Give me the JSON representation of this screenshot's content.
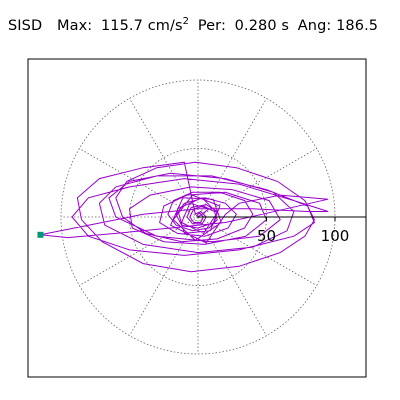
{
  "header": {
    "station": "SISD",
    "max_label": "Max:",
    "max_value": "115.7",
    "max_unit": "cm/s",
    "max_unit_exp": "2",
    "per_label": "Per:",
    "per_value": "0.280",
    "per_unit": "s",
    "ang_label": "Ang:",
    "ang_value": "186.5"
  },
  "chart_data": {
    "type": "polar-trajectory",
    "title": "SISD",
    "max_amplitude": 115.7,
    "max_unit": "cm/s2",
    "period_s": 0.28,
    "angle_deg": 186.5,
    "radial_ticks": [
      50,
      100
    ],
    "radial_tick_labels": [
      "50",
      "100"
    ],
    "rmax": 100,
    "grid": {
      "circles": [
        50,
        100
      ],
      "spokes_deg": [
        0,
        30,
        60,
        90,
        120,
        150,
        180,
        210,
        240,
        270,
        300,
        330
      ]
    },
    "colors": {
      "trajectory": "#9900cc",
      "grid": "#666666",
      "marker": "#009977",
      "axis": "#000000"
    },
    "marker": {
      "x": -115.0,
      "y": -13.0
    },
    "trajectory": [
      [
        0,
        0
      ],
      [
        8,
        6
      ],
      [
        -6,
        10
      ],
      [
        -12,
        -4
      ],
      [
        4,
        -12
      ],
      [
        14,
        3
      ],
      [
        3,
        14
      ],
      [
        -15,
        6
      ],
      [
        -10,
        -12
      ],
      [
        9,
        -10
      ],
      [
        16,
        8
      ],
      [
        -4,
        16
      ],
      [
        -18,
        -2
      ],
      [
        -2,
        -17
      ],
      [
        17,
        -4
      ],
      [
        11,
        13
      ],
      [
        -11,
        14
      ],
      [
        -20,
        -6
      ],
      [
        6,
        -19
      ],
      [
        20,
        2
      ],
      [
        30,
        10
      ],
      [
        60,
        16
      ],
      [
        95,
        13
      ],
      [
        60,
        5
      ],
      [
        20,
        -4
      ],
      [
        -20,
        -8
      ],
      [
        -60,
        -12
      ],
      [
        -95,
        -15
      ],
      [
        -115,
        -13
      ],
      [
        -80,
        -6
      ],
      [
        -40,
        2
      ],
      [
        0,
        6
      ],
      [
        40,
        6
      ],
      [
        80,
        4
      ],
      [
        95,
        4
      ],
      [
        70,
        12
      ],
      [
        30,
        24
      ],
      [
        -10,
        28
      ],
      [
        -50,
        22
      ],
      [
        -80,
        14
      ],
      [
        -92,
        0
      ],
      [
        -80,
        -14
      ],
      [
        -50,
        -24
      ],
      [
        -10,
        -28
      ],
      [
        30,
        -24
      ],
      [
        70,
        -14
      ],
      [
        85,
        -4
      ],
      [
        80,
        8
      ],
      [
        50,
        20
      ],
      [
        10,
        30
      ],
      [
        -30,
        30
      ],
      [
        -60,
        22
      ],
      [
        -72,
        10
      ],
      [
        -68,
        -6
      ],
      [
        -40,
        -20
      ],
      [
        0,
        -26
      ],
      [
        40,
        -22
      ],
      [
        65,
        -10
      ],
      [
        70,
        4
      ],
      [
        55,
        18
      ],
      [
        20,
        28
      ],
      [
        -20,
        32
      ],
      [
        -50,
        26
      ],
      [
        -65,
        14
      ],
      [
        -60,
        0
      ],
      [
        -30,
        -14
      ],
      [
        10,
        -18
      ],
      [
        45,
        -14
      ],
      [
        60,
        -2
      ],
      [
        52,
        12
      ],
      [
        25,
        20
      ],
      [
        -5,
        22
      ],
      [
        -35,
        16
      ],
      [
        -50,
        6
      ],
      [
        -48,
        -8
      ],
      [
        -25,
        -18
      ],
      [
        5,
        -20
      ],
      [
        35,
        -14
      ],
      [
        50,
        -2
      ],
      [
        45,
        10
      ],
      [
        20,
        18
      ],
      [
        -8,
        16
      ],
      [
        -25,
        8
      ],
      [
        -28,
        -4
      ],
      [
        -15,
        -12
      ],
      [
        5,
        -14
      ],
      [
        22,
        -8
      ],
      [
        28,
        2
      ],
      [
        20,
        10
      ],
      [
        5,
        14
      ],
      [
        -10,
        10
      ],
      [
        -16,
        2
      ],
      [
        -12,
        -6
      ],
      [
        0,
        -8
      ],
      [
        12,
        -4
      ],
      [
        14,
        4
      ],
      [
        6,
        9
      ],
      [
        -5,
        7
      ],
      [
        -8,
        0
      ],
      [
        -4,
        -5
      ],
      [
        3,
        -5
      ],
      [
        6,
        0
      ],
      [
        2,
        4
      ],
      [
        -2,
        2
      ],
      [
        -10,
        40
      ],
      [
        -40,
        36
      ],
      [
        -72,
        28
      ],
      [
        -88,
        14
      ],
      [
        -85,
        -2
      ],
      [
        -70,
        -18
      ],
      [
        -40,
        -34
      ],
      [
        -5,
        -40
      ],
      [
        30,
        -36
      ],
      [
        60,
        -26
      ],
      [
        78,
        -14
      ],
      [
        85,
        -2
      ],
      [
        78,
        12
      ],
      [
        58,
        26
      ],
      [
        28,
        36
      ],
      [
        -2,
        40
      ],
      [
        -30,
        36
      ],
      [
        -52,
        26
      ],
      [
        -60,
        14
      ],
      [
        -55,
        0
      ],
      [
        -38,
        -12
      ],
      [
        -12,
        -18
      ],
      [
        14,
        -16
      ],
      [
        34,
        -8
      ],
      [
        40,
        2
      ],
      [
        34,
        12
      ],
      [
        16,
        18
      ],
      [
        -4,
        18
      ],
      [
        -18,
        12
      ],
      [
        -22,
        2
      ],
      [
        -16,
        -6
      ],
      [
        -4,
        -10
      ],
      [
        8,
        -8
      ],
      [
        14,
        -2
      ],
      [
        12,
        4
      ],
      [
        4,
        8
      ],
      [
        -3,
        6
      ],
      [
        -6,
        0
      ],
      [
        -3,
        -4
      ],
      [
        2,
        -4
      ],
      [
        4,
        0
      ],
      [
        1,
        3
      ],
      [
        -1,
        1
      ],
      [
        0,
        0
      ]
    ]
  }
}
